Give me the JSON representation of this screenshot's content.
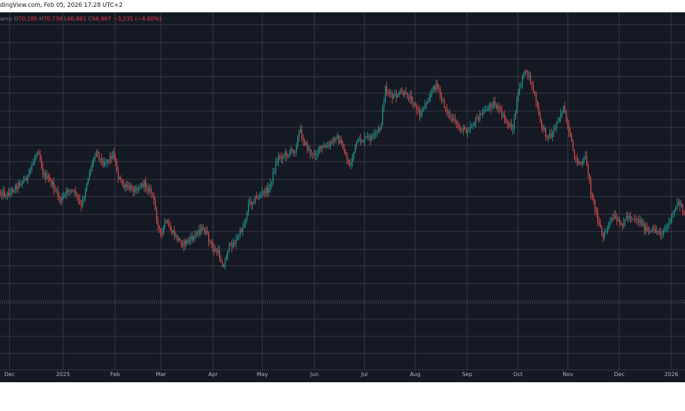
{
  "header": {
    "source_text": "dingView.com, Feb 05, 2026 17:28 UTC+2"
  },
  "legend": {
    "prefix": "amp",
    "open_label": "O",
    "open": "70,195",
    "high_label": "H",
    "high": "70,739",
    "low_label": "L",
    "low": "66,861",
    "close_label": "C",
    "close": "66,967",
    "change": "−3,231 (−4.60%)"
  },
  "colors": {
    "background": "#151924",
    "grid": "#393c47",
    "up": "#26a69a",
    "down": "#ef5350",
    "axis_text": "#b2b5be"
  },
  "chart_data": {
    "type": "candlestick",
    "x_axis": {
      "tick_labels": [
        "Dec",
        "2025",
        "Feb",
        "Mar",
        "Apr",
        "May",
        "Jun",
        "Jul",
        "Aug",
        "Sep",
        "Oct",
        "Nov",
        "Dec",
        "2026"
      ]
    },
    "y_axis": {
      "tick_labels": [],
      "grid": true
    },
    "price_line": "dotted",
    "series": [
      {
        "close_trend": [
          [
            0,
            262
          ],
          [
            10,
            266
          ],
          [
            25,
            252
          ],
          [
            40,
            240
          ],
          [
            55,
            198
          ],
          [
            62,
            235
          ],
          [
            75,
            250
          ],
          [
            88,
            275
          ],
          [
            100,
            258
          ],
          [
            110,
            265
          ],
          [
            118,
            285
          ],
          [
            128,
            240
          ],
          [
            140,
            200
          ],
          [
            148,
            220
          ],
          [
            158,
            214
          ],
          [
            165,
            205
          ],
          [
            172,
            240
          ],
          [
            180,
            255
          ],
          [
            195,
            258
          ],
          [
            210,
            250
          ],
          [
            222,
            265
          ],
          [
            228,
            300
          ],
          [
            235,
            330
          ],
          [
            240,
            305
          ],
          [
            248,
            318
          ],
          [
            258,
            330
          ],
          [
            266,
            338
          ],
          [
            280,
            330
          ],
          [
            292,
            315
          ],
          [
            300,
            322
          ],
          [
            310,
            345
          ],
          [
            318,
            352
          ],
          [
            326,
            372
          ],
          [
            332,
            345
          ],
          [
            345,
            332
          ],
          [
            356,
            308
          ],
          [
            362,
            280
          ],
          [
            372,
            272
          ],
          [
            385,
            262
          ],
          [
            392,
            258
          ],
          [
            398,
            236
          ],
          [
            405,
            212
          ],
          [
            420,
            206
          ],
          [
            430,
            200
          ],
          [
            437,
            172
          ],
          [
            445,
            192
          ],
          [
            455,
            210
          ],
          [
            465,
            200
          ],
          [
            480,
            195
          ],
          [
            490,
            180
          ],
          [
            500,
            198
          ],
          [
            510,
            225
          ],
          [
            520,
            190
          ],
          [
            532,
            185
          ],
          [
            545,
            182
          ],
          [
            555,
            168
          ],
          [
            562,
            110
          ],
          [
            572,
            125
          ],
          [
            585,
            118
          ],
          [
            600,
            125
          ],
          [
            612,
            150
          ],
          [
            622,
            130
          ],
          [
            636,
            104
          ],
          [
            645,
            130
          ],
          [
            655,
            150
          ],
          [
            668,
            168
          ],
          [
            680,
            172
          ],
          [
            690,
            162
          ],
          [
            700,
            152
          ],
          [
            710,
            140
          ],
          [
            720,
            132
          ],
          [
            730,
            146
          ],
          [
            740,
            162
          ],
          [
            748,
            170
          ],
          [
            755,
            125
          ],
          [
            763,
            88
          ],
          [
            770,
            90
          ],
          [
            780,
            120
          ],
          [
            788,
            160
          ],
          [
            796,
            178
          ],
          [
            805,
            180
          ],
          [
            814,
            155
          ],
          [
            822,
            140
          ],
          [
            830,
            178
          ],
          [
            840,
            215
          ],
          [
            848,
            222
          ],
          [
            855,
            212
          ],
          [
            862,
            262
          ],
          [
            872,
            300
          ],
          [
            880,
            330
          ],
          [
            888,
            308
          ],
          [
            896,
            300
          ],
          [
            905,
            312
          ],
          [
            915,
            298
          ],
          [
            925,
            300
          ],
          [
            935,
            306
          ],
          [
            945,
            322
          ],
          [
            955,
            318
          ],
          [
            965,
            322
          ],
          [
            975,
            310
          ],
          [
            985,
            288
          ],
          [
            990,
            275
          ],
          [
            1000,
            300
          ]
        ]
      }
    ]
  }
}
